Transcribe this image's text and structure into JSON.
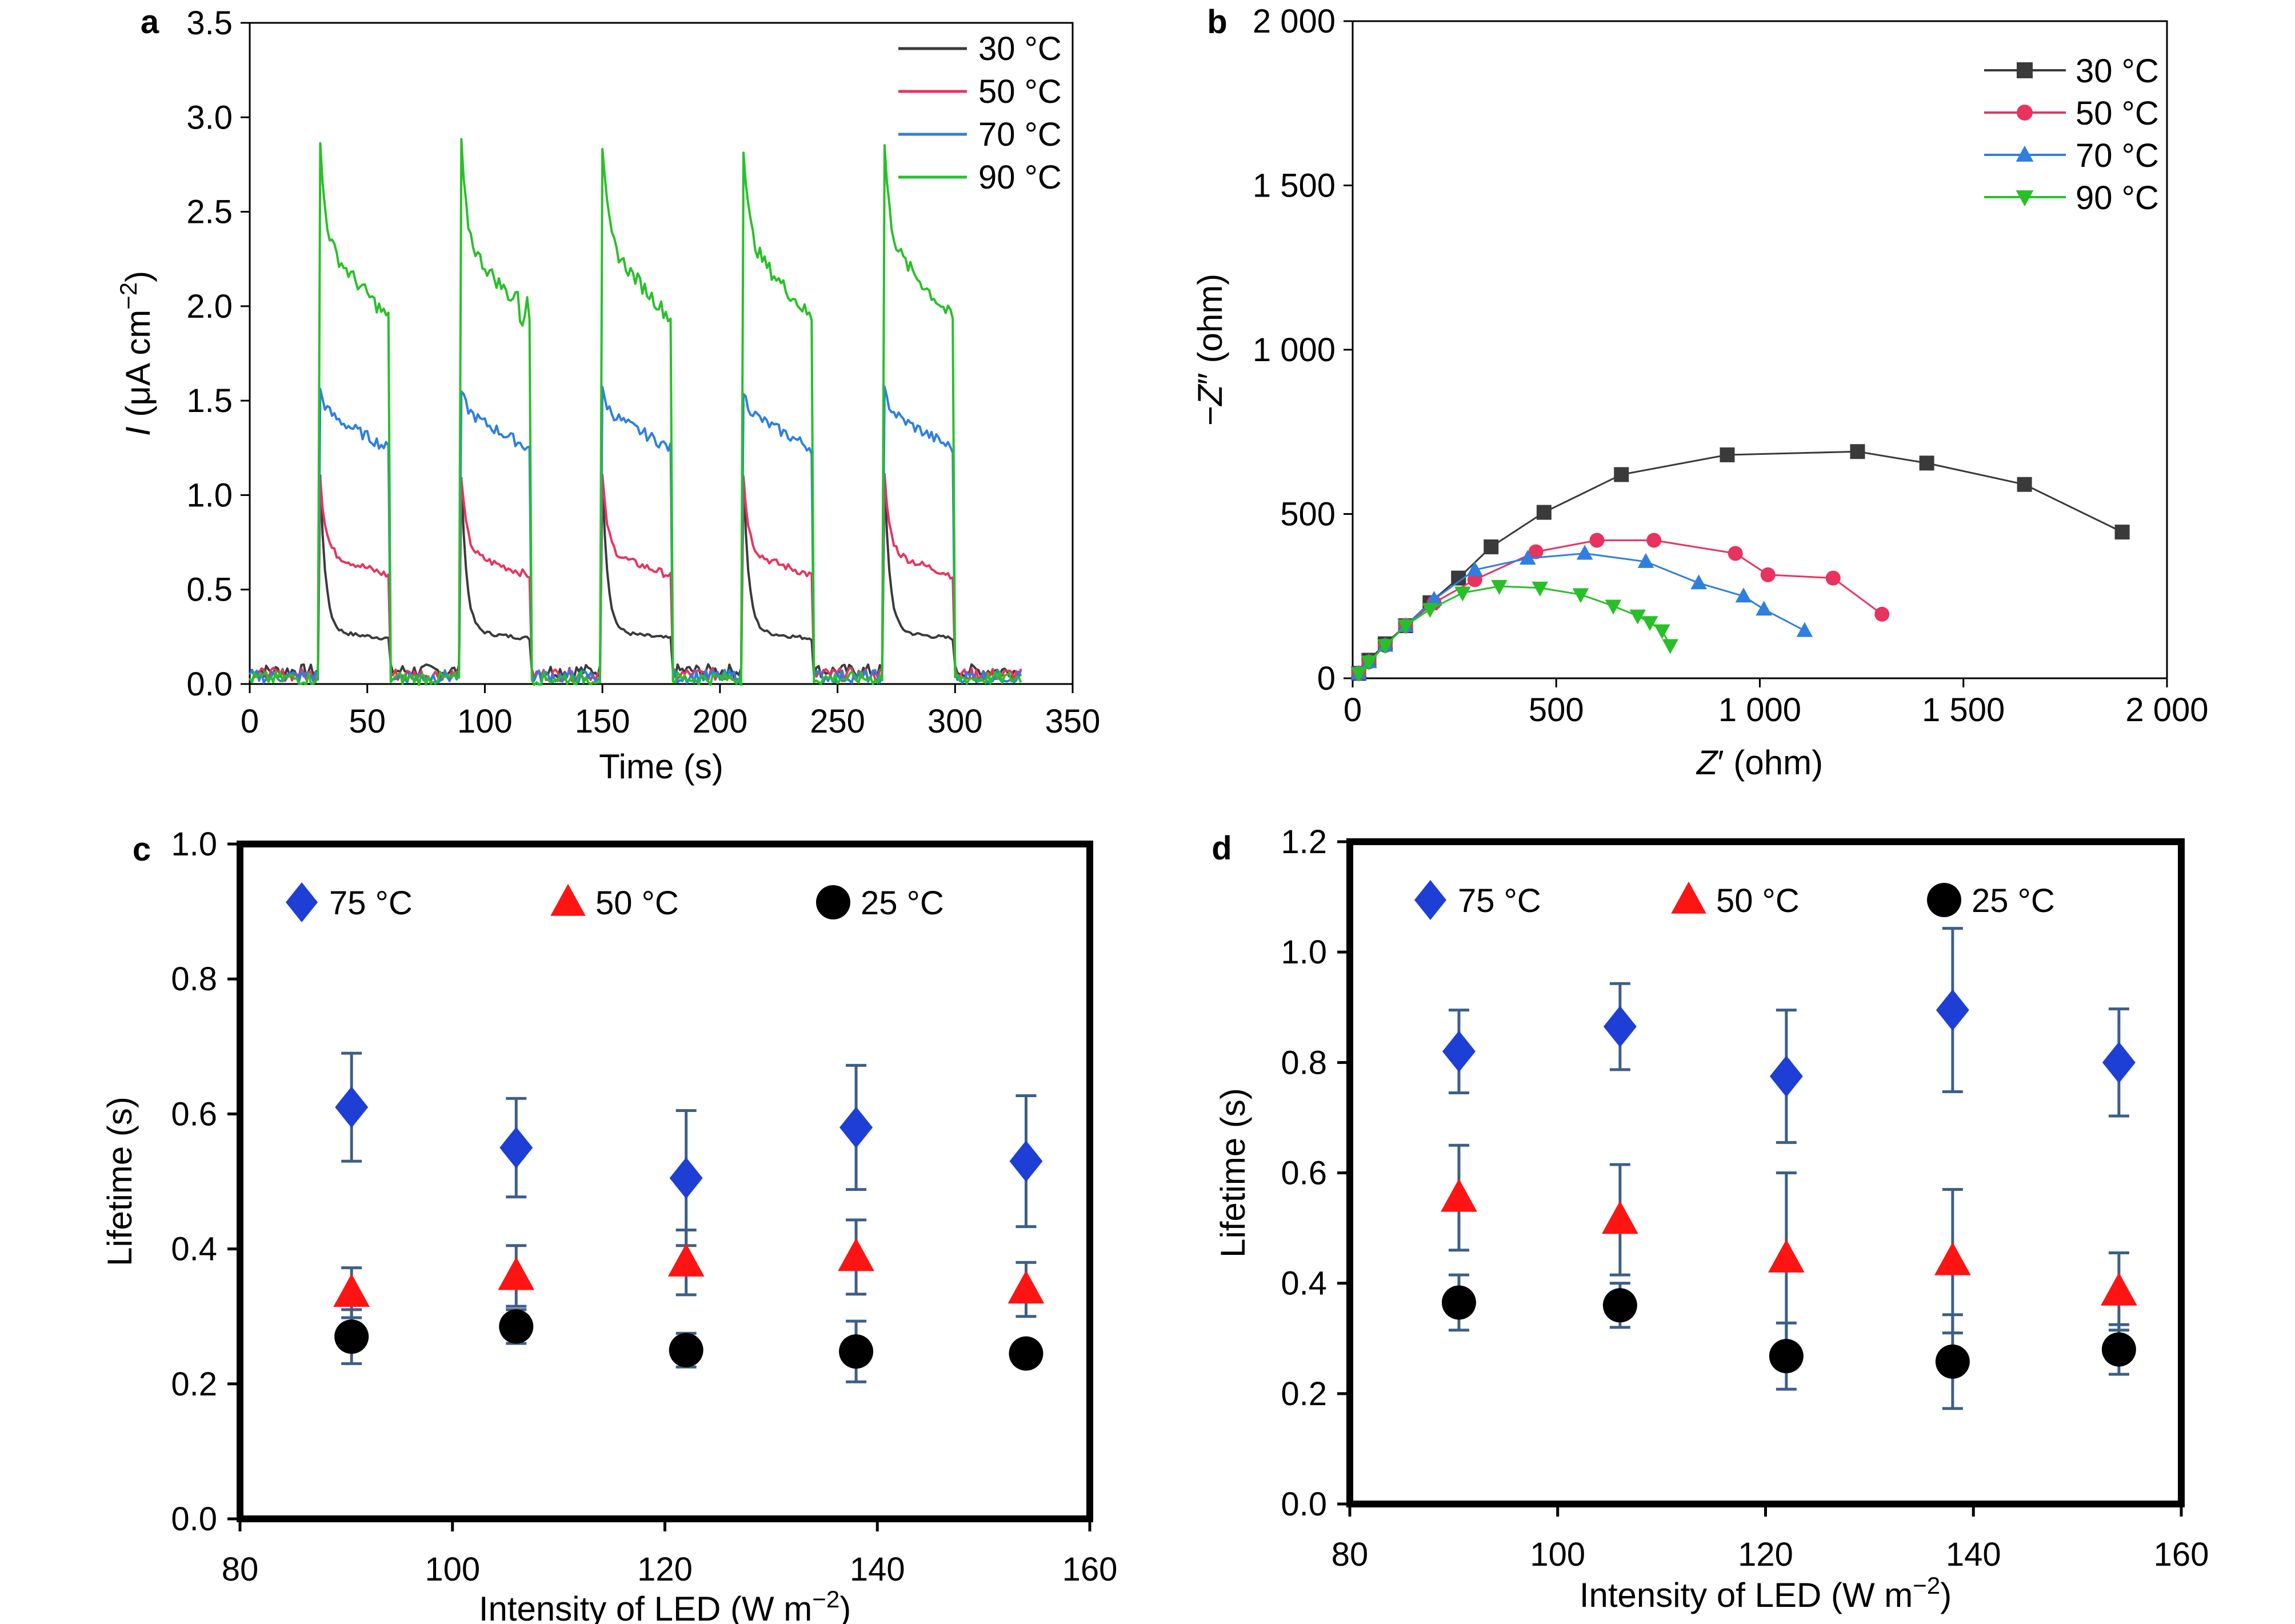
{
  "chart_data": [
    {
      "panel": "a",
      "type": "line",
      "xlabel": "Time (s)",
      "ylabel_parts": [
        "I",
        " (μA cm",
        "−2",
        ")"
      ],
      "xlim": [
        0,
        350
      ],
      "ylim": [
        0,
        3.5
      ],
      "xticks": [
        0,
        50,
        100,
        150,
        200,
        250,
        300,
        350
      ],
      "yticks": [
        0.0,
        0.5,
        1.0,
        1.5,
        2.0,
        2.5,
        3.0,
        3.5
      ],
      "ytick_labels": [
        "0.0",
        "0.5",
        "1.0",
        "1.5",
        "2.0",
        "2.5",
        "3.0",
        "3.5"
      ],
      "legend_position": "top-right",
      "on_intervals": [
        [
          30,
          60
        ],
        [
          90,
          120
        ],
        [
          150,
          180
        ],
        [
          210,
          240
        ],
        [
          270,
          300
        ]
      ],
      "x_end": 328,
      "series": [
        {
          "name": "30 °C",
          "color": "#3a3a3a",
          "dark_level": 0.07,
          "spike": 1.1,
          "plateau_start": 0.28,
          "plateau_end": 0.24
        },
        {
          "name": "50 °C",
          "color": "#e8335e",
          "dark_level": 0.05,
          "spike": 1.1,
          "plateau_start": 0.7,
          "plateau_end": 0.57
        },
        {
          "name": "70 °C",
          "color": "#2e7fe0",
          "dark_level": 0.04,
          "spike": 1.55,
          "plateau_start": 1.45,
          "plateau_end": 1.24
        },
        {
          "name": "90 °C",
          "color": "#28c028",
          "dark_level": 0.03,
          "spike": 2.85,
          "plateau_start": 2.35,
          "plateau_end": 1.92
        }
      ]
    },
    {
      "panel": "b",
      "type": "scatter",
      "xlabel_parts": [
        "Z",
        "′ (ohm)"
      ],
      "ylabel_parts": [
        "−Z",
        "″ (ohm)"
      ],
      "xlim": [
        0,
        2000
      ],
      "ylim": [
        0,
        2000
      ],
      "xticks": [
        0,
        500,
        1000,
        1500,
        2000
      ],
      "xtick_labels": [
        "0",
        "500",
        "1 000",
        "1 500",
        "2 000"
      ],
      "yticks": [
        0,
        500,
        1000,
        1500,
        2000
      ],
      "ytick_labels": [
        "0",
        "500",
        "1 000",
        "1 500",
        "2 000"
      ],
      "legend_position": "top-right",
      "series": [
        {
          "name": "30 °C",
          "color": "#3a3a3a",
          "marker": "square",
          "points": [
            [
              15,
              15
            ],
            [
              40,
              55
            ],
            [
              80,
              105
            ],
            [
              130,
              160
            ],
            [
              190,
              230
            ],
            [
              260,
              305
            ],
            [
              340,
              400
            ],
            [
              470,
              505
            ],
            [
              660,
              620
            ],
            [
              920,
              680
            ],
            [
              1240,
              690
            ],
            [
              1410,
              655
            ],
            [
              1650,
              590
            ],
            [
              1890,
              445
            ]
          ]
        },
        {
          "name": "50 °C",
          "color": "#e8335e",
          "marker": "circle",
          "points": [
            [
              15,
              15
            ],
            [
              40,
              50
            ],
            [
              80,
              100
            ],
            [
              130,
              160
            ],
            [
              200,
              230
            ],
            [
              300,
              300
            ],
            [
              450,
              385
            ],
            [
              600,
              420
            ],
            [
              740,
              420
            ],
            [
              940,
              380
            ],
            [
              1020,
              315
            ],
            [
              1180,
              305
            ],
            [
              1300,
              195
            ]
          ]
        },
        {
          "name": "70 °C",
          "color": "#2e7fe0",
          "marker": "triangle",
          "points": [
            [
              15,
              15
            ],
            [
              40,
              50
            ],
            [
              80,
              100
            ],
            [
              130,
              160
            ],
            [
              200,
              240
            ],
            [
              300,
              330
            ],
            [
              430,
              365
            ],
            [
              570,
              380
            ],
            [
              720,
              355
            ],
            [
              850,
              290
            ],
            [
              960,
              250
            ],
            [
              1010,
              210
            ],
            [
              1110,
              145
            ]
          ]
        },
        {
          "name": "90 °C",
          "color": "#28c028",
          "marker": "triangle-down",
          "points": [
            [
              15,
              15
            ],
            [
              40,
              50
            ],
            [
              80,
              100
            ],
            [
              130,
              160
            ],
            [
              190,
              210
            ],
            [
              270,
              260
            ],
            [
              360,
              280
            ],
            [
              460,
              275
            ],
            [
              560,
              255
            ],
            [
              640,
              220
            ],
            [
              700,
              190
            ],
            [
              730,
              170
            ],
            [
              760,
              145
            ],
            [
              780,
              100
            ]
          ]
        }
      ]
    },
    {
      "panel": "c",
      "type": "scatter",
      "xlabel_parts": [
        "Intensity of LED (W m",
        "−2",
        ")"
      ],
      "ylabel": "Lifetime (s)",
      "xlim": [
        80,
        160
      ],
      "ylim": [
        0,
        1.0
      ],
      "xticks": [
        80,
        100,
        120,
        140,
        160
      ],
      "yticks": [
        0.0,
        0.2,
        0.4,
        0.6,
        0.8,
        1.0
      ],
      "ytick_labels": [
        "0.0",
        "0.2",
        "0.4",
        "0.6",
        "0.8",
        "1.0"
      ],
      "legend_position": "top",
      "series": [
        {
          "name": "75 °C",
          "color": "#1e3fd6",
          "marker": "diamond",
          "x": [
            90.5,
            106,
            122,
            138,
            154
          ],
          "y": [
            0.61,
            0.55,
            0.505,
            0.58,
            0.53
          ],
          "err": [
            0.08,
            0.073,
            0.1,
            0.092,
            0.097
          ]
        },
        {
          "name": "50 °C",
          "color": "#ff1414",
          "marker": "triangle",
          "x": [
            90.5,
            106,
            122,
            138,
            154
          ],
          "y": [
            0.335,
            0.36,
            0.38,
            0.388,
            0.34
          ],
          "err": [
            0.037,
            0.045,
            0.048,
            0.055,
            0.04
          ]
        },
        {
          "name": "25 °C",
          "color": "#000000",
          "marker": "circle",
          "x": [
            90.5,
            106,
            122,
            138,
            154
          ],
          "y": [
            0.27,
            0.285,
            0.25,
            0.248,
            0.245
          ],
          "err": [
            0.04,
            0.025,
            0.025,
            0.045,
            0.0
          ]
        }
      ]
    },
    {
      "panel": "d",
      "type": "scatter",
      "xlabel_parts": [
        "Intensity of LED (W m",
        "−2",
        ")"
      ],
      "ylabel": "Lifetime (s)",
      "xlim": [
        80,
        160
      ],
      "ylim": [
        0,
        1.2
      ],
      "xticks": [
        80,
        100,
        120,
        140,
        160
      ],
      "yticks": [
        0.0,
        0.2,
        0.4,
        0.6,
        0.8,
        1.0,
        1.2
      ],
      "ytick_labels": [
        "0.0",
        "0.2",
        "0.4",
        "0.6",
        "0.8",
        "1.0",
        "1.2"
      ],
      "legend_position": "top",
      "series": [
        {
          "name": "75 °C",
          "color": "#1e3fd6",
          "marker": "diamond",
          "x": [
            90.5,
            106,
            122,
            138,
            154
          ],
          "y": [
            0.82,
            0.865,
            0.775,
            0.895,
            0.8
          ],
          "err": [
            0.075,
            0.078,
            0.12,
            0.148,
            0.097
          ]
        },
        {
          "name": "50 °C",
          "color": "#ff1414",
          "marker": "triangle",
          "x": [
            90.5,
            106,
            122,
            138,
            154
          ],
          "y": [
            0.555,
            0.515,
            0.445,
            0.44,
            0.385
          ],
          "err": [
            0.095,
            0.1,
            0.155,
            0.13,
            0.07
          ]
        },
        {
          "name": "25 °C",
          "color": "#000000",
          "marker": "circle",
          "x": [
            90.5,
            106,
            122,
            138,
            154
          ],
          "y": [
            0.365,
            0.36,
            0.268,
            0.258,
            0.28
          ],
          "err": [
            0.05,
            0.04,
            0.06,
            0.085,
            0.045
          ]
        }
      ]
    }
  ]
}
